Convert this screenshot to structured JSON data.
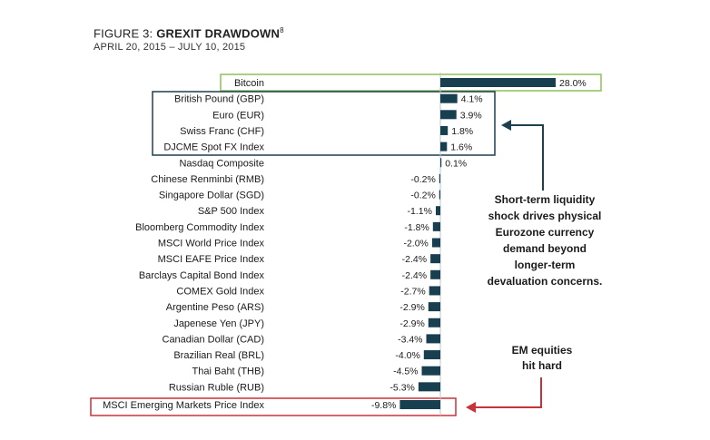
{
  "header": {
    "figure_prefix": "FIGURE 3: ",
    "title_bold": "GREXIT DRAWDOWN",
    "footnote_mark": "8",
    "subtitle": "APRIL 20, 2015 – JULY 10, 2015"
  },
  "chart_data": {
    "type": "bar",
    "orientation": "horizontal",
    "title": "GREXIT DRAWDOWN",
    "subtitle": "APRIL 20, 2015 – JULY 10, 2015",
    "categories": [
      "Bitcoin",
      "British Pound (GBP)",
      "Euro (EUR)",
      "Swiss Franc (CHF)",
      "DJCME Spot FX Index",
      "Nasdaq Composite",
      "Chinese Renminbi (RMB)",
      "Singapore Dollar (SGD)",
      "S&P 500 Index",
      "Bloomberg Commodity Index",
      "MSCI World Price Index",
      "MSCI EAFE Price Index",
      "Barclays Capital Bond Index",
      "COMEX Gold Index",
      "Argentine Peso (ARS)",
      "Japenese Yen (JPY)",
      "Canadian Dollar (CAD)",
      "Brazilian Real (BRL)",
      "Thai Baht (THB)",
      "Russian Ruble (RUB)",
      "MSCI Emerging Markets Price Index"
    ],
    "values": [
      28.0,
      4.1,
      3.9,
      1.8,
      1.6,
      0.1,
      -0.2,
      -0.2,
      -1.1,
      -1.8,
      -2.0,
      -2.4,
      -2.4,
      -2.7,
      -2.9,
      -2.9,
      -3.4,
      -4.0,
      -4.5,
      -5.3,
      -9.8
    ],
    "value_labels": [
      "28.0%",
      "4.1%",
      "3.9%",
      "1.8%",
      "1.6%",
      "0.1%",
      "-0.2%",
      "-0.2%",
      "-1.1%",
      "-1.8%",
      "-2.0%",
      "-2.4%",
      "-2.4%",
      "-2.7%",
      "-2.9%",
      "-2.9%",
      "-3.4%",
      "-4.0%",
      "-4.5%",
      "-5.3%",
      "-9.8%"
    ],
    "unit": "%",
    "bar_color": "#173f4f",
    "annotations": [
      {
        "lines": [
          "Short-term liquidity",
          "shock drives physical",
          "Eurozone currency",
          "demand beyond",
          "longer-term",
          "devaluation concerns."
        ]
      },
      {
        "lines": [
          "EM equities",
          "hit hard"
        ]
      }
    ],
    "highlights": {
      "green_box_color": "#8dc05a",
      "navy_box_color": "#1d3f4e",
      "red_box_color": "#c8323a"
    }
  }
}
